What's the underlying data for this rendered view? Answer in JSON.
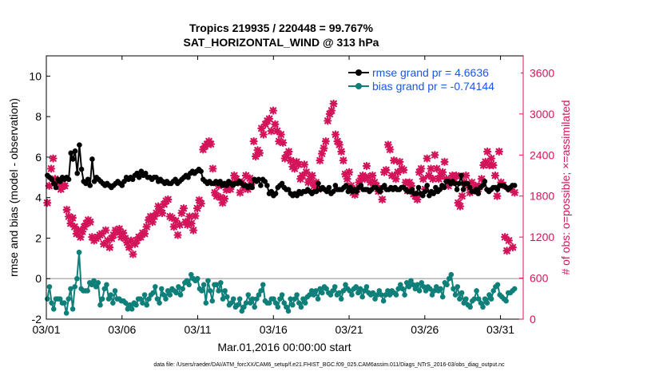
{
  "colors": {
    "rmse": "#000000",
    "bias": "#0f7f7a",
    "obs": "#d4145a",
    "zero_line": "#b3b3b3",
    "legend_text": "#1a56e8"
  },
  "chart_data": {
    "type": "line",
    "title": "Tropics 219935 / 220448 = 99.767%",
    "subtitle": "SAT_HORIZONTAL_WIND @ 313 hPa",
    "xlabel": "Mar.01,2016 00:00:00 start",
    "ylabel": "rmse and bias (model - observation)",
    "y2label": "# of obs: o=possible; ×=assimilated",
    "footnote": "data file: /Users/raeder/DAI/ATM_forcXX/CAM6_setup/f.e21.FHIST_BGC.f09_025.CAM6assim.011/Diags_NTrS_2016-03/obs_diag_output.nc",
    "xlim": [
      0,
      31.5
    ],
    "ylim": [
      -2,
      11
    ],
    "y2lim": [
      0,
      3850
    ],
    "x_ticks": [
      0,
      5,
      10,
      15,
      20,
      25,
      30
    ],
    "x_tick_labels": [
      "03/01",
      "03/06",
      "03/11",
      "03/16",
      "03/21",
      "03/26",
      "03/31"
    ],
    "y_ticks": [
      -2,
      0,
      2,
      4,
      6,
      8,
      10
    ],
    "y_tick_labels": [
      "-2",
      "0",
      "2",
      "4",
      "6",
      "8",
      "10"
    ],
    "y2_ticks": [
      0,
      600,
      1200,
      1800,
      2400,
      3000,
      3600
    ],
    "y2_tick_labels": [
      "0",
      "600",
      "1200",
      "1800",
      "2400",
      "3000",
      "3600"
    ],
    "legend": [
      {
        "key": "rmse",
        "label": "rmse grand pr = 4.6636"
      },
      {
        "key": "bias",
        "label": "bias grand pr = -0.74144"
      }
    ],
    "legend_position": "top-right",
    "grid": false,
    "rmse": [
      5.1,
      5.0,
      4.9,
      4.7,
      4.5,
      4.9,
      4.8,
      5.0,
      4.9,
      5.0,
      4.9,
      6.2,
      5.9,
      6.3,
      5.2,
      6.6,
      5.4,
      4.8,
      4.7,
      4.9,
      4.6,
      5.9,
      4.8,
      5.0,
      4.9,
      4.8,
      4.7,
      4.6,
      4.7,
      4.6,
      4.5,
      4.6,
      4.7,
      4.8,
      4.7,
      4.6,
      4.8,
      5.0,
      4.9,
      5.0,
      4.9,
      5.1,
      5.2,
      5.0,
      5.3,
      5.1,
      5.2,
      5.0,
      5.0,
      4.9,
      5.0,
      5.0,
      4.8,
      4.9,
      4.8,
      4.7,
      4.8,
      4.7,
      4.7,
      4.8,
      4.9,
      4.7,
      4.8,
      4.9,
      5.0,
      5.1,
      5.0,
      5.2,
      5.3,
      5.2,
      5.3,
      5.4,
      5.3,
      4.9,
      4.8,
      4.7,
      4.8,
      4.7,
      4.7,
      4.8,
      4.7,
      4.8,
      4.6,
      4.7,
      4.6,
      4.8,
      4.7,
      4.6,
      4.7,
      4.7,
      4.8,
      4.7,
      4.6,
      4.6,
      4.5,
      4.6,
      4.5,
      4.9,
      4.8,
      4.9,
      4.6,
      4.9,
      4.8,
      4.6,
      4.2,
      4.3,
      4.1,
      4.2,
      4.5,
      4.6,
      4.7,
      4.5,
      4.4,
      4.4,
      4.2,
      4.1,
      4.2,
      4.1,
      4.3,
      4.2,
      4.3,
      4.3,
      4.4,
      4.3,
      4.2,
      4.3,
      4.3,
      4.7,
      4.4,
      4.5,
      4.4,
      4.3,
      4.5,
      4.2,
      4.3,
      4.6,
      4.4,
      4.4,
      4.4,
      4.5,
      4.6,
      4.3,
      4.5,
      4.3,
      4.4,
      4.3,
      4.5,
      4.6,
      4.4,
      4.4,
      4.4,
      4.3,
      4.4,
      4.5,
      4.5,
      4.4,
      4.3,
      4.5,
      4.6,
      4.4,
      4.4,
      4.5,
      4.4,
      4.5,
      4.4,
      4.4,
      4.5,
      4.5,
      4.4,
      4.3,
      4.3,
      4.4,
      4.2,
      4.2,
      4.5,
      4.2,
      4.1,
      4.3,
      4.6,
      4.1,
      4.3,
      4.2,
      4.5,
      4.3,
      4.4,
      4.6,
      4.5,
      4.8,
      4.8,
      4.7,
      4.8,
      4.7,
      4.4,
      4.7,
      5.1,
      4.4,
      4.7,
      4.7,
      4.5,
      4.3,
      4.3,
      4.4,
      4.2,
      4.5,
      4.6,
      4.8,
      4.4,
      4.3,
      4.4,
      4.5,
      4.5,
      4.4,
      4.6,
      4.6,
      4.6,
      4.5,
      4.4,
      4.5,
      4.6,
      4.6
    ],
    "bias": [
      -1.0,
      -0.4,
      -1.2,
      -1.5,
      -1.0,
      -1.0,
      -1.0,
      -1.2,
      -1.2,
      -1.7,
      -1.0,
      -0.5,
      -1.5,
      -0.4,
      0.0,
      1.3,
      -0.5,
      -0.6,
      -0.6,
      -0.6,
      -0.2,
      -0.3,
      -0.1,
      -0.4,
      -0.2,
      -1.3,
      -1.0,
      -0.5,
      -0.3,
      -1.0,
      -0.8,
      -1.2,
      -0.6,
      -1.0,
      -1.0,
      -1.1,
      -1.1,
      -1.2,
      -1.5,
      -1.3,
      -1.5,
      -1.2,
      -1.3,
      -1.0,
      -1.0,
      -1.2,
      -0.8,
      -1.3,
      -1.0,
      -0.8,
      -0.7,
      -0.4,
      -1.0,
      -1.2,
      -0.5,
      -0.8,
      -1.0,
      -0.6,
      -0.8,
      -0.5,
      -0.6,
      -0.7,
      -0.4,
      -0.8,
      -0.5,
      -0.2,
      -0.1,
      -0.3,
      0.2,
      0.0,
      -0.1,
      0.0,
      -0.5,
      -0.6,
      -0.3,
      -1.2,
      -0.1,
      -0.6,
      -1.1,
      -0.3,
      -0.3,
      -0.6,
      -0.2,
      -1.0,
      -0.6,
      -0.9,
      -1.3,
      -1.2,
      -1.0,
      -1.4,
      -1.3,
      -1.0,
      -1.6,
      -1.4,
      -1.2,
      -0.8,
      -1.2,
      -1.0,
      -1.4,
      -1.0,
      -0.8,
      -0.6,
      -0.3,
      -1.1,
      -1.2,
      -1.2,
      -1.0,
      -1.0,
      -1.2,
      -1.4,
      -1.0,
      -0.8,
      -1.2,
      -1.4,
      -1.6,
      -1.0,
      -1.3,
      -1.0,
      -0.8,
      -1.2,
      -1.4,
      -1.0,
      -1.2,
      -0.9,
      -0.8,
      -0.6,
      -0.8,
      -0.6,
      -1.0,
      -0.5,
      -0.7,
      -0.4,
      -0.5,
      -0.7,
      -0.8,
      -0.6,
      -0.4,
      -0.8,
      -0.7,
      -1.0,
      -0.6,
      -0.3,
      -0.5,
      -0.6,
      -0.8,
      -0.5,
      -0.4,
      -0.7,
      -0.5,
      -0.9,
      -0.6,
      -0.4,
      -0.7,
      -0.8,
      -0.7,
      -1.0,
      -0.8,
      -0.6,
      -0.8,
      -1.1,
      -0.8,
      -0.6,
      -0.8,
      -0.6,
      -0.7,
      -0.8,
      -0.5,
      -0.3,
      -0.5,
      -0.8,
      -0.2,
      -0.4,
      -0.1,
      -0.3,
      -0.5,
      -0.3,
      -0.6,
      -0.2,
      -0.4,
      -0.6,
      -0.4,
      -0.5,
      -0.8,
      -0.6,
      -0.4,
      -0.6,
      -0.5,
      -0.9,
      -0.2,
      -0.3,
      0.0,
      0.2,
      -0.5,
      -0.8,
      -0.4,
      -1.0,
      -0.7,
      -1.2,
      -1.0,
      -1.3,
      -1.4,
      -1.1,
      -1.0,
      -0.6,
      -1.0,
      -1.2,
      -1.4,
      -1.0,
      -1.2,
      -0.8,
      -1.0,
      -0.6,
      -0.4,
      -0.3,
      -0.8,
      -0.9,
      -1.0,
      -1.1,
      -0.7,
      -0.7,
      -0.6,
      -0.5
    ],
    "obs_assimilated": [
      1700,
      1950,
      2200,
      2350,
      2050,
      2000,
      2000,
      1900,
      1950,
      1950,
      1600,
      1500,
      1400,
      1480,
      1350,
      1250,
      1300,
      1200,
      1280,
      1350,
      1400,
      1450,
      1420,
      1200,
      1150,
      1180,
      1200,
      1230,
      1250,
      1100,
      1300,
      1150,
      1050,
      1180,
      1230,
      1300,
      1280,
      1320,
      1200,
      1260,
      1180,
      1120,
      1050,
      1150,
      950,
      1100,
      1150,
      1200,
      1200,
      1260,
      1250,
      1350,
      1450,
      1500,
      1420,
      1500,
      1550,
      1650,
      1600,
      1550,
      1680,
      1730,
      1750,
      1500,
      1480,
      1350,
      1440,
      1230,
      1380,
      1550,
      1620,
      1420,
      1380,
      1500,
      1400,
      1300,
      1510,
      1620,
      1740,
      1690,
      2480,
      2530,
      2560,
      2600,
      2560,
      2200,
      1850,
      1800,
      1950,
      1780,
      1700,
      1760,
      1890,
      1970,
      1900,
      1990,
      2100,
      2050,
      2000,
      1850,
      2000,
      1920,
      2100,
      1900,
      2060,
      2000,
      2600,
      2380,
      2470,
      2430,
      2790,
      2700,
      2850,
      2900,
      2930,
      2750,
      3050,
      2850,
      2750,
      2600,
      2700,
      2580,
      2350,
      2400,
      2450,
      2320,
      2230,
      2200,
      2300,
      2260,
      2050,
      2100,
      2260,
      2150,
      2000,
      2050,
      2100,
      1950,
      2000,
      1900,
      2320,
      2420,
      2500,
      2600,
      2900,
      3000,
      3050,
      3150,
      2700,
      2600,
      2550,
      2450,
      2320,
      2120,
      2050,
      2150,
      1950,
      1850,
      1820,
      1900,
      2000,
      2060,
      2100,
      2050,
      2240,
      2080,
      2000,
      2100,
      2000,
      1950,
      1870,
      1900,
      1750,
      2150,
      2180,
      2550,
      2480,
      2100,
      2320,
      2050,
      2150,
      2300,
      2200,
      2180,
      2000,
      1880,
      2000,
      1950,
      1830,
      1800,
      1750,
      2150,
      2200,
      2050,
      1900,
      2350,
      2100,
      2200,
      2050,
      2400,
      2200,
      2050,
      2100,
      2150,
      2300,
      2050,
      1950,
      2000,
      2100,
      2050,
      2100,
      1700,
      1650,
      1800,
      2000,
      2100,
      1950,
      1850,
      2000,
      1900,
      1950,
      1870,
      1940,
      2050,
      2250,
      2300,
      2450,
      2250,
      2350,
      2250,
      2100,
      1800,
      2450,
      2000,
      1960,
      1200,
      1000,
      1150,
      1900,
      1050,
      1850
    ]
  }
}
